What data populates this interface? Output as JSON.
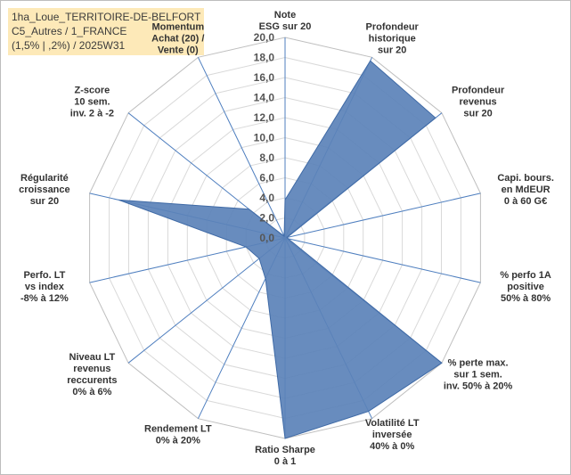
{
  "title_lines": [
    "1ha_Loue_TERRITOIRE-DE-BELFORT",
    "C5_Autres / 1_FRANCE",
    "(1,5% | ,2%) / 2025W31"
  ],
  "chart_data": {
    "type": "radar",
    "rmax": 20,
    "grid_step": 2,
    "tick_labels": [
      "0,0",
      "2,0",
      "4,0",
      "6,0",
      "8,0",
      "10,0",
      "12,0",
      "14,0",
      "16,0",
      "18,0",
      "20,0"
    ],
    "axes": [
      [
        "Note",
        "ESG sur 20"
      ],
      [
        "Profondeur",
        "historique",
        "sur 20"
      ],
      [
        "Profondeur",
        "revenus",
        "sur 20"
      ],
      [
        "Capi. bours.",
        "en MdEUR",
        "0 à 60 G€"
      ],
      [
        "% perfo 1A",
        "positive",
        "50% à 80%"
      ],
      [
        "% perte max.",
        "sur 1 sem.",
        "inv. 50% à 20%"
      ],
      [
        "Volatilité LT",
        "inversée",
        "40% à 0%"
      ],
      [
        "Ratio Sharpe",
        "0 à 1"
      ],
      [
        "Rendement LT",
        "0% à 20%"
      ],
      [
        "Niveau LT",
        "revenus",
        "reccurents",
        "0% à 6%"
      ],
      [
        "Perfo. LT",
        "vs index",
        "-8% à 12%"
      ],
      [
        "Régularité",
        "croissance",
        "sur 20"
      ],
      [
        "Z-score",
        "10 sem.",
        "inv. 2 à -2"
      ],
      [
        "Momentum",
        "Achat (20) /",
        "Vente (0)"
      ]
    ],
    "series": [
      {
        "values": [
          3.8,
          19.6,
          19.2,
          0.2,
          0.3,
          20.0,
          19.2,
          20.0,
          4.5,
          3.3,
          4.0,
          17.0,
          4.6,
          0.2
        ],
        "color": "#5b82b9"
      }
    ]
  }
}
